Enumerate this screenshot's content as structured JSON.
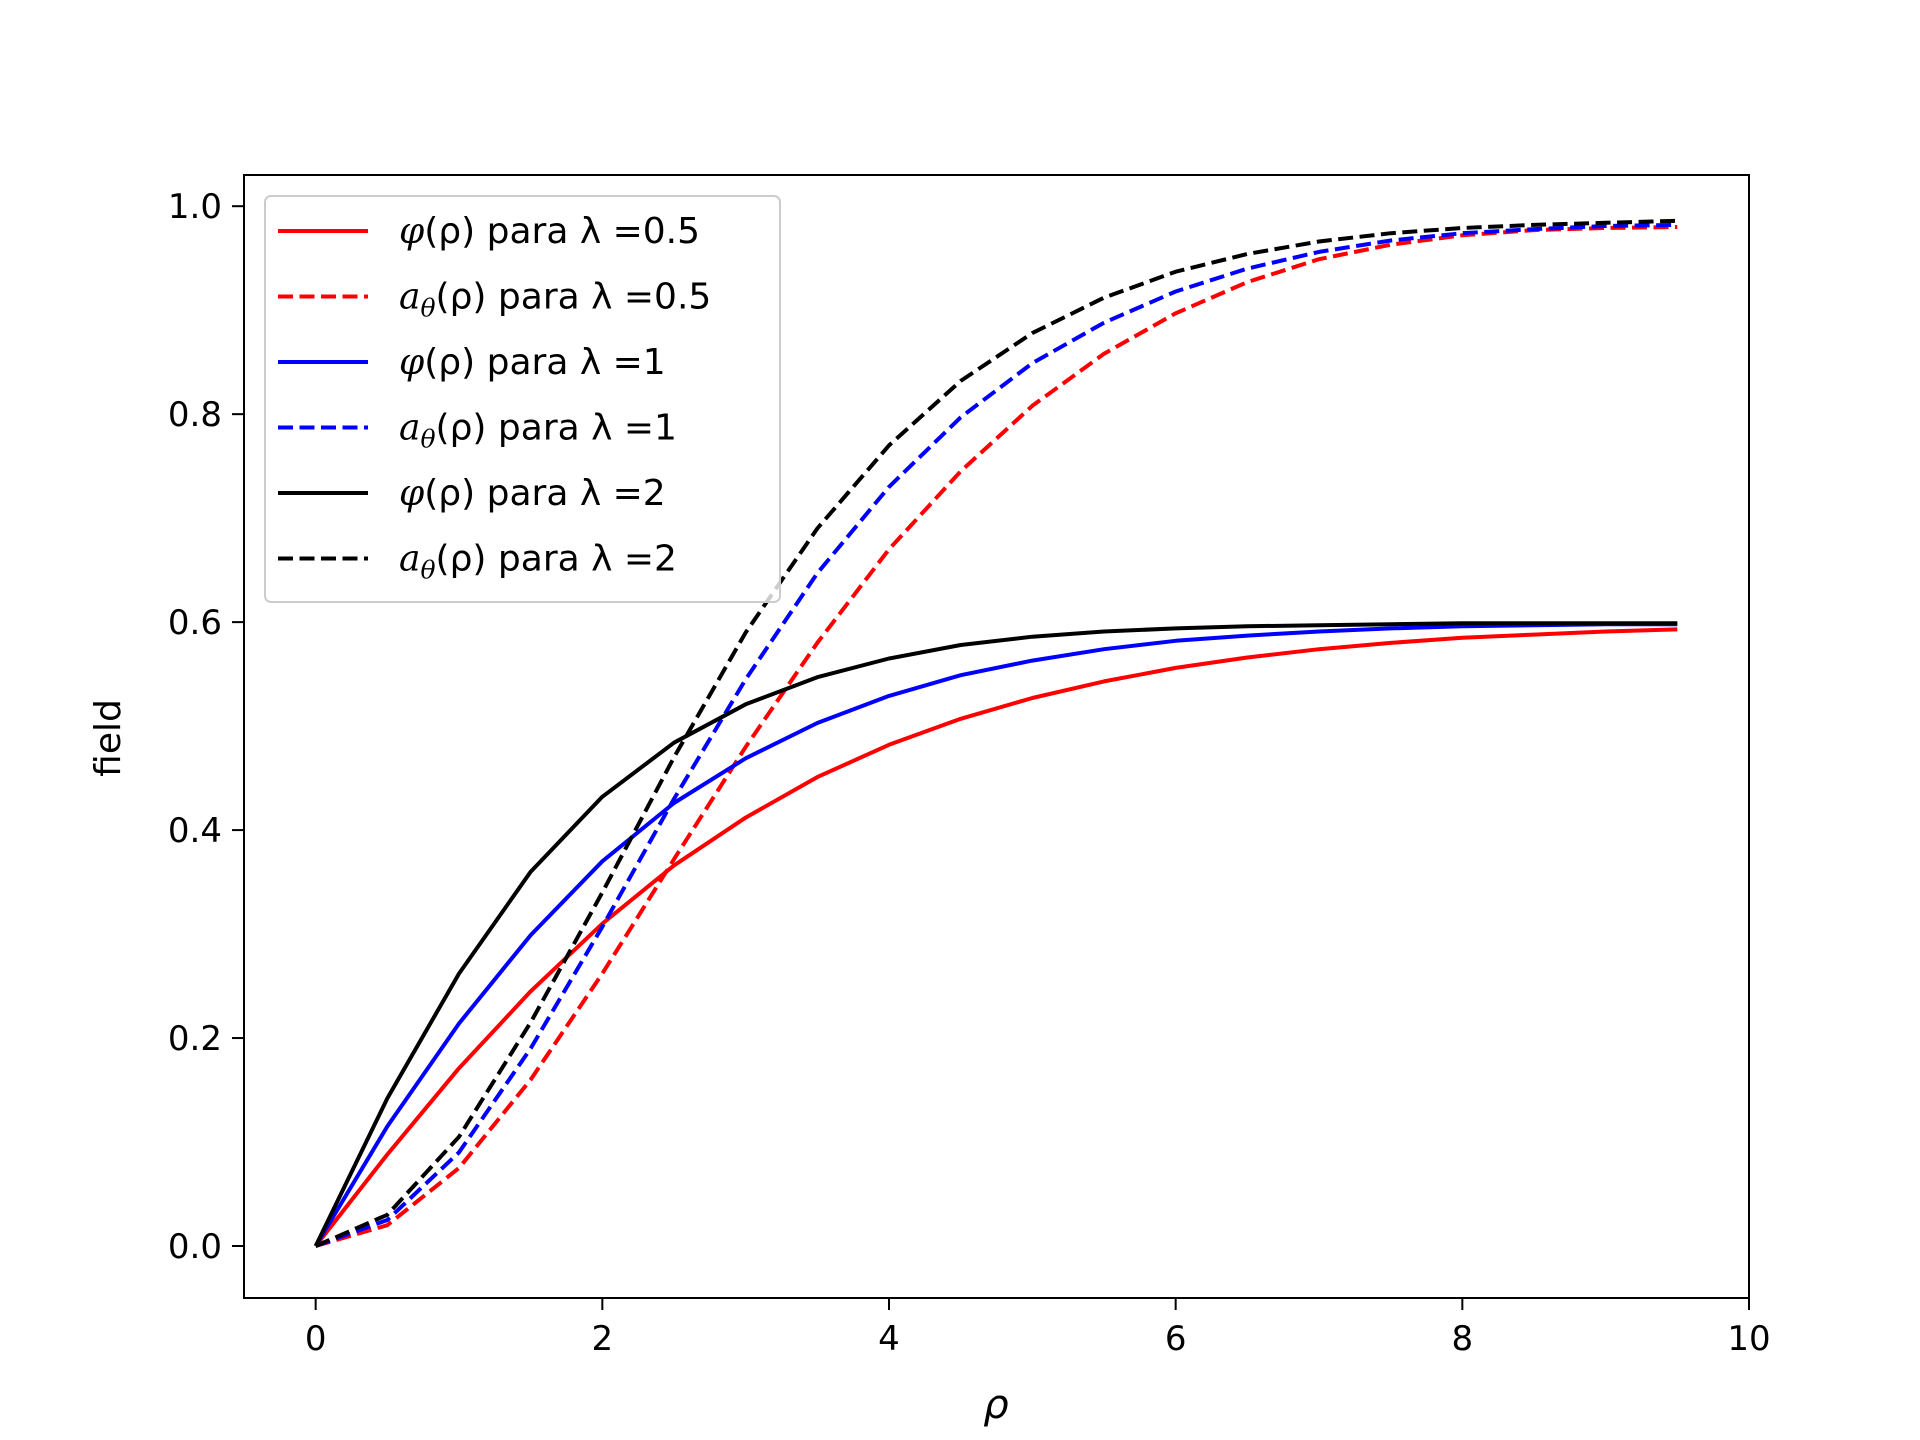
{
  "chart_data": {
    "type": "line",
    "xlabel": "ρ",
    "ylabel": "field",
    "xlim": [
      -0.5,
      10
    ],
    "ylim": [
      -0.05,
      1.03
    ],
    "xticks": [
      "0",
      "2",
      "4",
      "6",
      "8",
      "10"
    ],
    "yticks": [
      "0.0",
      "0.2",
      "0.4",
      "0.6",
      "0.8",
      "1.0"
    ],
    "grid": false,
    "legend_position": "upper-left",
    "x": [
      0,
      0.5,
      1,
      1.5,
      2,
      2.5,
      3,
      3.5,
      4,
      4.5,
      5,
      5.5,
      6,
      6.5,
      7,
      7.5,
      8,
      8.5,
      9,
      9.5
    ],
    "series": [
      {
        "name": "φ(ρ) para λ =0.5",
        "label_sym": "φ",
        "label_sub": "",
        "label_tail": "(ρ) para λ =0.5",
        "color": "#ff0000",
        "dash": "solid",
        "values": [
          0,
          0.088,
          0.171,
          0.245,
          0.31,
          0.366,
          0.412,
          0.451,
          0.482,
          0.507,
          0.527,
          0.543,
          0.556,
          0.566,
          0.574,
          0.58,
          0.585,
          0.588,
          0.591,
          0.593
        ]
      },
      {
        "name": "aθ(ρ) para λ =0.5",
        "label_sym": "a",
        "label_sub": "θ",
        "label_tail": "(ρ) para λ =0.5",
        "color": "#ff0000",
        "dash": "dashed",
        "values": [
          0,
          0.02,
          0.075,
          0.16,
          0.262,
          0.372,
          0.48,
          0.58,
          0.67,
          0.745,
          0.808,
          0.858,
          0.897,
          0.927,
          0.949,
          0.963,
          0.972,
          0.977,
          0.979,
          0.98
        ]
      },
      {
        "name": "φ(ρ) para λ =1",
        "label_sym": "φ",
        "label_sub": "",
        "label_tail": "(ρ) para λ =1",
        "color": "#0000ff",
        "dash": "solid",
        "values": [
          0,
          0.115,
          0.214,
          0.299,
          0.37,
          0.426,
          0.469,
          0.503,
          0.529,
          0.549,
          0.563,
          0.574,
          0.582,
          0.587,
          0.591,
          0.594,
          0.596,
          0.597,
          0.598,
          0.598
        ]
      },
      {
        "name": "aθ(ρ) para λ =1",
        "label_sym": "a",
        "label_sub": "θ",
        "label_tail": "(ρ) para λ =1",
        "color": "#0000ff",
        "dash": "dashed",
        "values": [
          0,
          0.025,
          0.09,
          0.19,
          0.307,
          0.43,
          0.545,
          0.647,
          0.73,
          0.797,
          0.849,
          0.888,
          0.918,
          0.94,
          0.956,
          0.967,
          0.974,
          0.978,
          0.981,
          0.982
        ]
      },
      {
        "name": "φ(ρ) para λ =2",
        "label_sym": "φ",
        "label_sub": "",
        "label_tail": "(ρ) para λ =2",
        "color": "#000000",
        "dash": "solid",
        "values": [
          0,
          0.142,
          0.262,
          0.36,
          0.432,
          0.484,
          0.521,
          0.547,
          0.565,
          0.578,
          0.586,
          0.591,
          0.594,
          0.596,
          0.597,
          0.598,
          0.599,
          0.599,
          0.599,
          0.599
        ]
      },
      {
        "name": "aθ(ρ) para λ =2",
        "label_sym": "a",
        "label_sub": "θ",
        "label_tail": "(ρ) para λ =2",
        "color": "#000000",
        "dash": "dashed",
        "values": [
          0,
          0.03,
          0.105,
          0.215,
          0.34,
          0.47,
          0.59,
          0.69,
          0.77,
          0.832,
          0.878,
          0.912,
          0.937,
          0.954,
          0.966,
          0.974,
          0.979,
          0.982,
          0.984,
          0.986
        ]
      }
    ]
  }
}
